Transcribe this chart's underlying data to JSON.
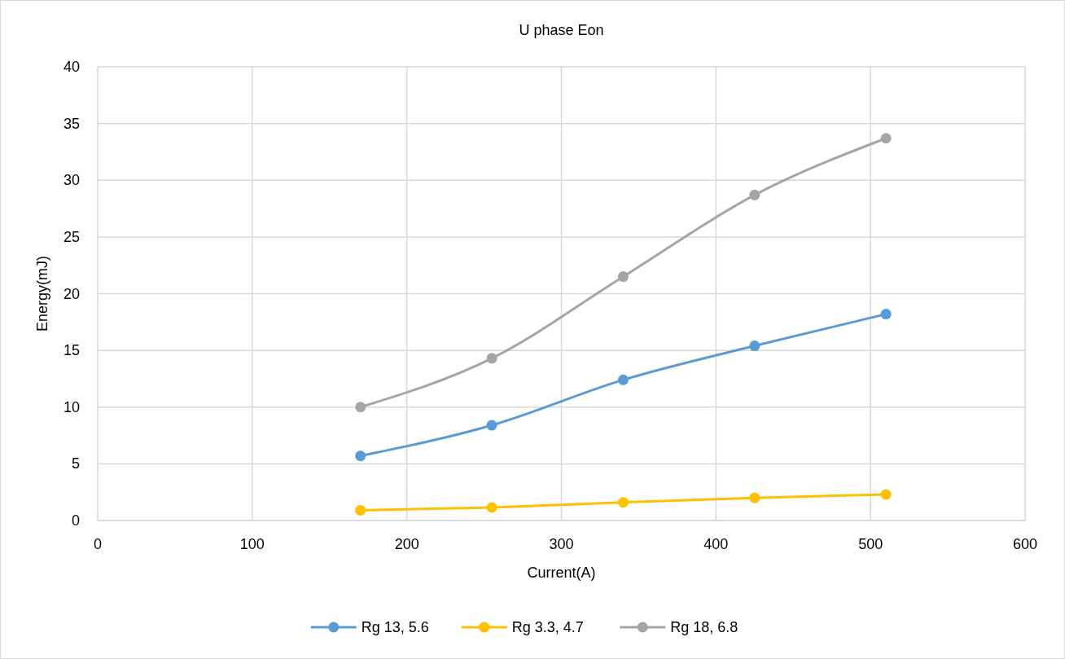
{
  "chart_data": {
    "type": "line",
    "title": "U phase Eon",
    "xlabel": "Current(A)",
    "ylabel": "Energy(mJ)",
    "x": [
      170,
      255,
      340,
      425,
      510
    ],
    "series": [
      {
        "name": "Rg 13, 5.6",
        "color": "#5b9bd5",
        "values": [
          5.7,
          8.4,
          12.4,
          15.4,
          18.2
        ]
      },
      {
        "name": "Rg 3.3, 4.7",
        "color": "#ffc000",
        "values": [
          0.9,
          1.15,
          1.6,
          2.0,
          2.3
        ]
      },
      {
        "name": "Rg 18, 6.8",
        "color": "#a5a5a5",
        "values": [
          10,
          14.3,
          21.5,
          28.7,
          33.7
        ]
      }
    ],
    "xlim": [
      0,
      600
    ],
    "xticks": [
      0,
      100,
      200,
      300,
      400,
      500,
      600
    ],
    "ylim": [
      0,
      40
    ],
    "yticks": [
      0,
      5,
      10,
      15,
      20,
      25,
      30,
      35,
      40
    ],
    "grid": true,
    "legend": "bottom",
    "marker": "circle",
    "line_style": "solid"
  }
}
